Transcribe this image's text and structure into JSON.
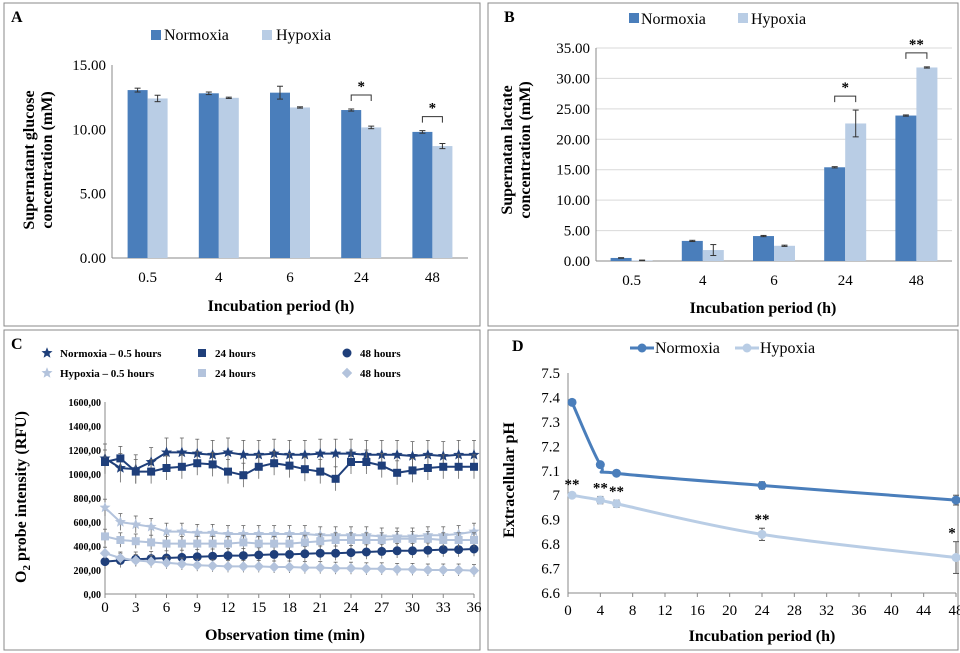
{
  "colors": {
    "normoxia": "#4a7ebb",
    "hypoxia": "#b9cde5",
    "n_dark": "#1f3f7a",
    "h_light": "#b3c3dc",
    "axis": "#888888",
    "border": "#888888"
  },
  "chart_data": [
    {
      "panel": "A",
      "type": "bar",
      "categories": [
        "0.5",
        "4",
        "6",
        "24",
        "48"
      ],
      "series": [
        {
          "name": "Normoxia",
          "values": [
            13.05,
            12.8,
            12.85,
            11.5,
            9.8
          ],
          "errors": [
            0.15,
            0.1,
            0.5,
            0.08,
            0.1
          ]
        },
        {
          "name": "Hypoxia",
          "values": [
            12.4,
            12.45,
            11.7,
            10.15,
            8.7
          ],
          "errors": [
            0.25,
            0.05,
            0.05,
            0.1,
            0.2
          ]
        }
      ],
      "xlabel": "Incubation period (h)",
      "ylabel": [
        "Supernatant glucose",
        "concentration (mM)"
      ],
      "ylim": [
        0,
        15
      ],
      "yticks": [
        "0.00",
        "5.00",
        "10.00",
        "15.00"
      ],
      "annotations": [
        {
          "category": "24",
          "text": "*"
        },
        {
          "category": "48",
          "text": "*"
        }
      ],
      "legend": "top"
    },
    {
      "panel": "B",
      "type": "bar",
      "categories": [
        "0.5",
        "4",
        "6",
        "24",
        "48"
      ],
      "series": [
        {
          "name": "Normoxia",
          "values": [
            0.5,
            3.3,
            4.1,
            15.4,
            23.9
          ],
          "errors": [
            0.05,
            0.1,
            0.1,
            0.1,
            0.1
          ]
        },
        {
          "name": "Hypoxia",
          "values": [
            0.1,
            1.8,
            2.5,
            22.6,
            31.8
          ],
          "errors": [
            0.05,
            0.9,
            0.1,
            2.2,
            0.1
          ]
        }
      ],
      "xlabel": "Incubation period (h)",
      "ylabel": [
        "Supernatan lactate",
        "concentration (mM)"
      ],
      "ylim": [
        0,
        35
      ],
      "yticks": [
        "0.00",
        "5.00",
        "10.00",
        "15.00",
        "20.00",
        "25.00",
        "30.00",
        "35.00"
      ],
      "annotations": [
        {
          "category": "24",
          "text": "*"
        },
        {
          "category": "48",
          "text": "**"
        }
      ],
      "legend": "top"
    },
    {
      "panel": "C",
      "type": "line",
      "x": [
        0,
        1.5,
        3,
        4.5,
        6,
        7.5,
        9,
        10.5,
        12,
        13.5,
        15,
        16.5,
        18,
        19.5,
        21,
        22.5,
        24,
        25.5,
        27,
        28.5,
        30,
        31.5,
        33,
        34.5,
        36
      ],
      "series": [
        {
          "name": "Normoxia – 0.5 hours",
          "marker": "star",
          "values": [
            1130,
            1050,
            1040,
            1100,
            1180,
            1180,
            1170,
            1160,
            1180,
            1160,
            1160,
            1170,
            1160,
            1160,
            1170,
            1170,
            1170,
            1160,
            1160,
            1160,
            1150,
            1160,
            1150,
            1160,
            1160
          ],
          "error": 120
        },
        {
          "name": "24 hours",
          "marker": "square",
          "values": [
            1100,
            1130,
            1020,
            1020,
            1050,
            1060,
            1090,
            1080,
            1020,
            990,
            1060,
            1090,
            1070,
            1040,
            1020,
            960,
            1100,
            1100,
            1070,
            1010,
            1030,
            1050,
            1060,
            1060,
            1060
          ],
          "error": 100
        },
        {
          "name": "48 hours",
          "marker": "circle",
          "values": [
            270,
            280,
            290,
            295,
            300,
            305,
            310,
            315,
            320,
            320,
            325,
            330,
            330,
            335,
            340,
            340,
            345,
            350,
            355,
            360,
            360,
            365,
            370,
            370,
            375
          ],
          "error": 60
        },
        {
          "name": "Hypoxia – 0.5 hours",
          "marker": "star",
          "values": [
            720,
            600,
            580,
            560,
            520,
            520,
            510,
            510,
            500,
            500,
            500,
            500,
            500,
            500,
            490,
            490,
            490,
            490,
            480,
            480,
            480,
            490,
            490,
            500,
            520
          ],
          "error": 70
        },
        {
          "name": "24 hours",
          "marker": "square",
          "values": [
            480,
            450,
            440,
            430,
            420,
            420,
            420,
            420,
            420,
            430,
            420,
            420,
            420,
            430,
            440,
            450,
            450,
            450,
            450,
            460,
            460,
            460,
            450,
            450,
            450
          ],
          "error": 60
        },
        {
          "name": "48 hours",
          "marker": "diamond",
          "values": [
            340,
            300,
            280,
            270,
            260,
            250,
            240,
            235,
            230,
            230,
            230,
            225,
            225,
            220,
            220,
            215,
            215,
            210,
            210,
            205,
            205,
            200,
            200,
            200,
            195
          ],
          "error": 50
        }
      ],
      "xlabel": "Observation time (min)",
      "ylabel_main": "O",
      "ylabel_sub": "2",
      "ylabel_rest": " probe intensity (RFU)",
      "xlim": [
        0,
        36
      ],
      "xticks": [
        "0",
        "3",
        "6",
        "9",
        "12",
        "15",
        "18",
        "21",
        "24",
        "27",
        "30",
        "33",
        "36"
      ],
      "ylim": [
        0,
        1600
      ],
      "yticks": [
        "0,00",
        "200,00",
        "400,00",
        "600,00",
        "800,00",
        "1000,00",
        "1200,00",
        "1400,00",
        "1600,00"
      ],
      "legend": "top"
    },
    {
      "panel": "D",
      "type": "line",
      "series": [
        {
          "name": "Normoxia",
          "x": [
            0.5,
            4,
            6,
            24,
            48
          ],
          "values": [
            7.38,
            7.125,
            7.09,
            7.04,
            6.98
          ],
          "errors": [
            0.005,
            0.005,
            0.005,
            0.015,
            0.02
          ]
        },
        {
          "name": "Hypoxia",
          "x": [
            0.5,
            4,
            6,
            24,
            48
          ],
          "values": [
            7.0,
            6.98,
            6.965,
            6.84,
            6.745
          ],
          "errors": [
            0.01,
            0.015,
            0.015,
            0.025,
            0.065
          ]
        }
      ],
      "xlabel": "Incubation period (h)",
      "ylabel": "Extracellular pH",
      "xlim": [
        0,
        48
      ],
      "xticks": [
        "0",
        "4",
        "8",
        "12",
        "16",
        "20",
        "24",
        "28",
        "32",
        "36",
        "40",
        "44",
        "48"
      ],
      "ylim": [
        6.6,
        7.5
      ],
      "yticks": [
        "6.6",
        "6.7",
        "6.8",
        "6.9",
        "7",
        "7.1",
        "7.2",
        "7.3",
        "7.4",
        "7.5"
      ],
      "annotations": [
        {
          "x": 0.5,
          "text": "**"
        },
        {
          "x": 4,
          "text": "**"
        },
        {
          "x": 6,
          "text": "**"
        },
        {
          "x": 24,
          "text": "**"
        },
        {
          "x": 48,
          "text": "*"
        }
      ],
      "legend": "top"
    }
  ]
}
